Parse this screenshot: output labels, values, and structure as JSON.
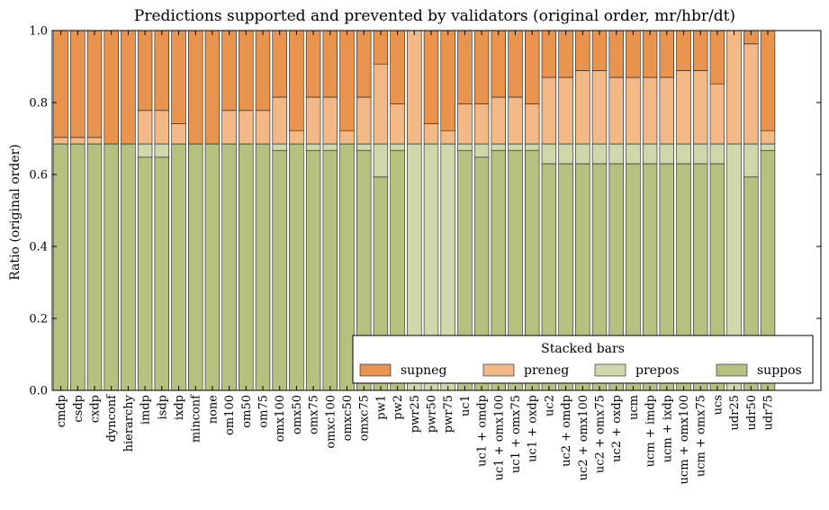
{
  "chart_data": {
    "type": "bar",
    "stacked": true,
    "title": "Predictions supported and prevented by validators (original order, mr/hbr/dt)",
    "xlabel": "",
    "ylabel": "Ratio (original order)",
    "ylim": [
      0,
      1.0
    ],
    "yticks": [
      "0.0",
      "0.2",
      "0.4",
      "0.6",
      "0.8",
      "1.0"
    ],
    "grid": false,
    "legend": {
      "title": "Stacked bars",
      "placement": "lower-right",
      "columns": 4
    },
    "categories": [
      "cmdp",
      "csdp",
      "cxdp",
      "dynconf",
      "hierarchy",
      "imdp",
      "isdp",
      "ixdp",
      "minconf",
      "none",
      "om100",
      "om50",
      "om75",
      "omx100",
      "omx50",
      "omx75",
      "omxc100",
      "omxc50",
      "omxc75",
      "pw1",
      "pw2",
      "pwr25",
      "pwr50",
      "pwr75",
      "uc1",
      "uc1 + omdp",
      "uc1 + omx100",
      "uc1 + omx75",
      "uc1 + oxdp",
      "uc2",
      "uc2 + omdp",
      "uc2 + omx100",
      "uc2 + omx75",
      "uc2 + oxdp",
      "ucm",
      "ucm + imdp",
      "ucm + ixdp",
      "ucm + omx100",
      "ucm + omx75",
      "ucs",
      "udr25",
      "udr50",
      "udr75"
    ],
    "series": [
      {
        "name": "suppos",
        "color": "#b5c27f",
        "values": [
          0.685,
          0.685,
          0.685,
          0.685,
          0.685,
          0.648,
          0.648,
          0.685,
          0.685,
          0.685,
          0.685,
          0.685,
          0.685,
          0.667,
          0.685,
          0.667,
          0.667,
          0.685,
          0.667,
          0.593,
          0.667,
          0.0,
          0.0,
          0.0,
          0.667,
          0.648,
          0.667,
          0.667,
          0.667,
          0.63,
          0.63,
          0.63,
          0.63,
          0.63,
          0.63,
          0.63,
          0.63,
          0.63,
          0.63,
          0.63,
          0.0,
          0.593,
          0.667
        ]
      },
      {
        "name": "prepos",
        "color": "#cfd8aa",
        "values": [
          0.0,
          0.0,
          0.0,
          0.0,
          0.0,
          0.037,
          0.037,
          0.0,
          0.0,
          0.0,
          0.0,
          0.0,
          0.0,
          0.018,
          0.0,
          0.018,
          0.018,
          0.0,
          0.018,
          0.092,
          0.018,
          0.685,
          0.685,
          0.685,
          0.018,
          0.037,
          0.018,
          0.018,
          0.018,
          0.055,
          0.055,
          0.055,
          0.055,
          0.055,
          0.055,
          0.055,
          0.055,
          0.055,
          0.055,
          0.055,
          0.685,
          0.092,
          0.018
        ]
      },
      {
        "name": "preneg",
        "color": "#f2b886",
        "values": [
          0.018,
          0.018,
          0.018,
          0.0,
          0.0,
          0.093,
          0.093,
          0.056,
          0.0,
          0.0,
          0.093,
          0.093,
          0.093,
          0.13,
          0.037,
          0.13,
          0.13,
          0.037,
          0.13,
          0.222,
          0.111,
          0.315,
          0.056,
          0.037,
          0.111,
          0.111,
          0.13,
          0.13,
          0.111,
          0.185,
          0.185,
          0.204,
          0.204,
          0.185,
          0.185,
          0.185,
          0.185,
          0.204,
          0.204,
          0.167,
          0.315,
          0.278,
          0.037
        ]
      },
      {
        "name": "supneg",
        "color": "#e8944e",
        "values": [
          0.297,
          0.297,
          0.297,
          0.315,
          0.315,
          0.222,
          0.222,
          0.259,
          0.315,
          0.315,
          0.222,
          0.222,
          0.222,
          0.185,
          0.278,
          0.185,
          0.185,
          0.278,
          0.185,
          0.093,
          0.204,
          0.0,
          0.259,
          0.278,
          0.204,
          0.204,
          0.185,
          0.185,
          0.204,
          0.13,
          0.13,
          0.111,
          0.111,
          0.13,
          0.13,
          0.13,
          0.13,
          0.111,
          0.111,
          0.148,
          0.0,
          0.037,
          0.278
        ]
      }
    ]
  }
}
